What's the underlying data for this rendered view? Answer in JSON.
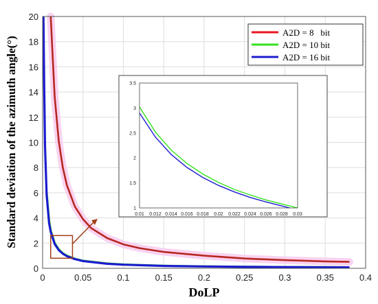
{
  "chart_data": [
    {
      "type": "line",
      "title": "",
      "xlabel": "DoLP",
      "ylabel": "Standard deviation of the azimuth angle(°)",
      "xlim": [
        0,
        0.4
      ],
      "ylim": [
        0,
        20
      ],
      "xticks": [
        "0",
        "0.05",
        "0.1",
        "0.15",
        "0.2",
        "0.25",
        "0.3",
        "0.35",
        "0.4"
      ],
      "yticks": [
        "0",
        "2",
        "4",
        "6",
        "8",
        "10",
        "12",
        "14",
        "16",
        "18",
        "20"
      ],
      "grid": true,
      "legend_position": "top-right",
      "series": [
        {
          "name": "A2D = 8   bit",
          "color": "#e8141e",
          "x": [
            0.01,
            0.012,
            0.015,
            0.02,
            0.025,
            0.03,
            0.04,
            0.05,
            0.06,
            0.08,
            0.1,
            0.12,
            0.15,
            0.2,
            0.25,
            0.3,
            0.35,
            0.38
          ],
          "y": [
            20,
            17.4,
            13.6,
            10.1,
            8.0,
            6.6,
            4.9,
            3.9,
            3.2,
            2.4,
            1.9,
            1.6,
            1.3,
            1.0,
            0.78,
            0.65,
            0.55,
            0.51
          ]
        },
        {
          "name": "A2D = 10 bit",
          "color": "#33e11c",
          "x": [
            0.005,
            0.008,
            0.01,
            0.015,
            0.02,
            0.025,
            0.03,
            0.04,
            0.05,
            0.08,
            0.1,
            0.15,
            0.2,
            0.25,
            0.3,
            0.35,
            0.38
          ],
          "y": [
            6.0,
            3.8,
            3.0,
            2.0,
            1.5,
            1.2,
            1.0,
            0.75,
            0.6,
            0.38,
            0.3,
            0.2,
            0.15,
            0.12,
            0.1,
            0.086,
            0.079
          ]
        },
        {
          "name": "A2D = 16 bit",
          "color": "#1c1ccf",
          "x": [
            0.001,
            0.002,
            0.003,
            0.005,
            0.008,
            0.01,
            0.015,
            0.02,
            0.025,
            0.03,
            0.04,
            0.05,
            0.08,
            0.1,
            0.15,
            0.2,
            0.25,
            0.3,
            0.35,
            0.38
          ],
          "y": [
            20,
            14.5,
            9.7,
            5.8,
            3.6,
            2.9,
            1.93,
            1.45,
            1.16,
            0.97,
            0.73,
            0.58,
            0.36,
            0.29,
            0.19,
            0.145,
            0.116,
            0.097,
            0.083,
            0.076
          ]
        }
      ],
      "annotation": {
        "zoom_box_x": [
          0.01,
          0.037
        ],
        "zoom_box_y": [
          0.8,
          2.6
        ],
        "box_color": "#a0401a"
      }
    },
    {
      "type": "line",
      "role": "inset",
      "xlim": [
        0.01,
        0.03
      ],
      "ylim": [
        1,
        3.5
      ],
      "xticks": [
        "0.01",
        "0.012",
        "0.014",
        "0.016",
        "0.018",
        "0.02",
        "0.022",
        "0.024",
        "0.026",
        "0.028",
        "0.03"
      ],
      "yticks": [
        "1",
        "1.5",
        "2",
        "2.5",
        "3",
        "3.5"
      ],
      "series": [
        {
          "color": "#33e11c",
          "x": [
            0.01,
            0.012,
            0.014,
            0.016,
            0.018,
            0.02,
            0.022,
            0.024,
            0.026,
            0.028,
            0.03
          ],
          "y": [
            3.02,
            2.52,
            2.16,
            1.89,
            1.68,
            1.51,
            1.37,
            1.26,
            1.16,
            1.08,
            1.0
          ]
        },
        {
          "color": "#1c1ccf",
          "x": [
            0.01,
            0.012,
            0.014,
            0.016,
            0.018,
            0.02,
            0.022,
            0.024,
            0.026,
            0.028,
            0.029
          ],
          "y": [
            2.9,
            2.42,
            2.07,
            1.81,
            1.61,
            1.45,
            1.32,
            1.21,
            1.12,
            1.04,
            1.0
          ]
        }
      ]
    }
  ]
}
